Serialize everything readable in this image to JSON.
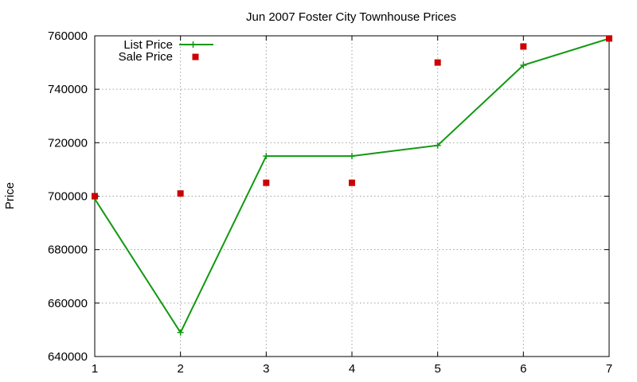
{
  "chart_data": {
    "type": "line",
    "title": "Jun 2007 Foster City Townhouse Prices",
    "xlabel": "",
    "ylabel": "Price",
    "x": [
      1,
      2,
      3,
      4,
      5,
      6,
      7
    ],
    "xlim": [
      1,
      7
    ],
    "ylim": [
      640000,
      760000
    ],
    "xticks": [
      "1",
      "2",
      "3",
      "4",
      "5",
      "6",
      "7"
    ],
    "yticks": [
      "640000",
      "660000",
      "680000",
      "700000",
      "720000",
      "740000",
      "760000"
    ],
    "grid": true,
    "legend_position": "top-left",
    "series": [
      {
        "name": "List Price",
        "style": "line+cross",
        "color": "#119911",
        "values": [
          699000,
          649000,
          715000,
          715000,
          719000,
          749000,
          759000
        ]
      },
      {
        "name": "Sale Price",
        "style": "square-marker",
        "color": "#cc0000",
        "values": [
          700000,
          701000,
          705000,
          705000,
          750000,
          756000,
          759000
        ]
      }
    ]
  }
}
